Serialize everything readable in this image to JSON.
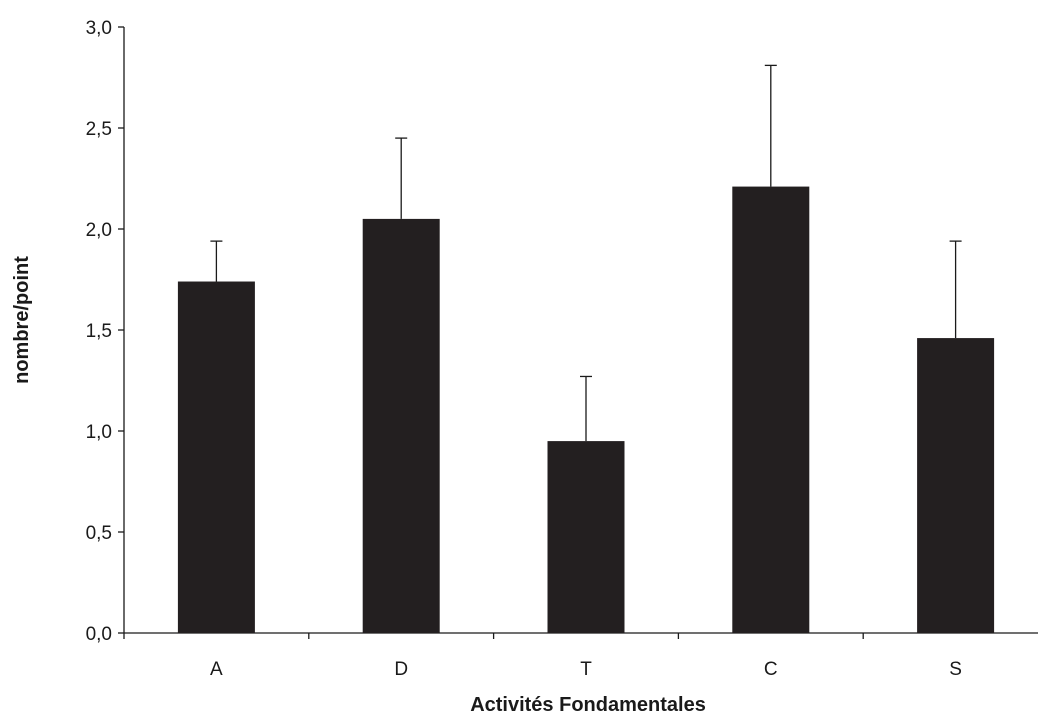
{
  "chart_data": {
    "type": "bar",
    "title": "",
    "xlabel": "Activités Fondamentales",
    "ylabel": "nombre/point",
    "categories": [
      "A",
      "D",
      "T",
      "C",
      "S"
    ],
    "values": [
      1.74,
      2.05,
      0.95,
      2.21,
      1.46
    ],
    "error_upper": [
      0.2,
      0.4,
      0.32,
      0.6,
      0.48
    ],
    "ylim": [
      0,
      3
    ],
    "yticks": [
      0.0,
      0.5,
      1.0,
      1.5,
      2.0,
      2.5,
      3.0
    ],
    "ytick_labels": [
      "0,0",
      "0,5",
      "1,0",
      "1,5",
      "2,0",
      "2,5",
      "3,0"
    ],
    "grid": false,
    "legend": "none",
    "bar_color": "#231f20"
  }
}
